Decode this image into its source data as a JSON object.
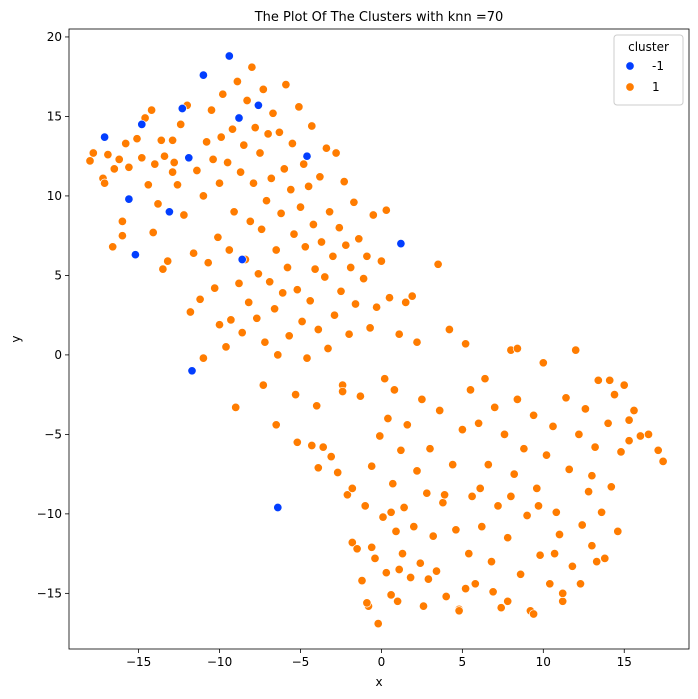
{
  "chart_data": {
    "type": "scatter",
    "title": "The Plot Of The Clusters with knn =70",
    "xlabel": "x",
    "ylabel": "y",
    "xlim": [
      -19.3,
      19.0
    ],
    "ylim": [
      -18.5,
      20.5
    ],
    "xticks": [
      -15,
      -10,
      -5,
      0,
      5,
      10,
      15
    ],
    "yticks": [
      -15,
      -10,
      -5,
      0,
      5,
      10,
      15,
      20
    ],
    "grid": false,
    "legend": {
      "title": "cluster",
      "placement": "top-right",
      "entries": [
        {
          "label": "-1",
          "color": "#023eff"
        },
        {
          "label": "1",
          "color": "#ff7c00"
        }
      ]
    },
    "series": [
      {
        "name": "-1",
        "color": "#023eff",
        "points": [
          [
            -17.1,
            13.7
          ],
          [
            -15.6,
            9.8
          ],
          [
            -15.2,
            6.3
          ],
          [
            -14.8,
            14.5
          ],
          [
            -13.1,
            9.0
          ],
          [
            -12.3,
            15.5
          ],
          [
            -11.9,
            12.4
          ],
          [
            -11.7,
            -1.0
          ],
          [
            -11.0,
            17.6
          ],
          [
            -9.4,
            18.8
          ],
          [
            -8.8,
            14.9
          ],
          [
            -8.6,
            6.0
          ],
          [
            -7.6,
            15.7
          ],
          [
            -4.6,
            12.5
          ],
          [
            -6.4,
            -9.6
          ],
          [
            1.2,
            7.0
          ]
        ]
      },
      {
        "name": "1",
        "color": "#ff7c00",
        "points": [
          [
            -18.0,
            12.2
          ],
          [
            -17.8,
            12.7
          ],
          [
            -17.2,
            11.1
          ],
          [
            -17.1,
            10.8
          ],
          [
            -16.9,
            12.6
          ],
          [
            -16.6,
            6.8
          ],
          [
            -16.5,
            11.7
          ],
          [
            -16.2,
            12.3
          ],
          [
            -16.0,
            7.5
          ],
          [
            -16.0,
            8.4
          ],
          [
            -15.8,
            13.3
          ],
          [
            -15.6,
            11.8
          ],
          [
            -15.1,
            13.6
          ],
          [
            -14.8,
            12.4
          ],
          [
            -14.6,
            14.9
          ],
          [
            -14.4,
            10.7
          ],
          [
            -14.2,
            15.4
          ],
          [
            -14.0,
            12.0
          ],
          [
            -13.8,
            9.5
          ],
          [
            -13.6,
            13.5
          ],
          [
            -13.4,
            12.5
          ],
          [
            -13.2,
            5.9
          ],
          [
            -12.9,
            13.5
          ],
          [
            -12.8,
            12.1
          ],
          [
            -12.6,
            10.7
          ],
          [
            -12.4,
            14.5
          ],
          [
            -12.2,
            8.8
          ],
          [
            -12.0,
            15.7
          ],
          [
            -11.8,
            2.7
          ],
          [
            -11.6,
            6.4
          ],
          [
            -11.4,
            11.6
          ],
          [
            -11.2,
            3.5
          ],
          [
            -11.0,
            10.0
          ],
          [
            -10.8,
            13.4
          ],
          [
            -10.7,
            5.8
          ],
          [
            -10.5,
            15.4
          ],
          [
            -10.3,
            4.2
          ],
          [
            -10.1,
            7.4
          ],
          [
            -10.0,
            10.8
          ],
          [
            -9.8,
            16.4
          ],
          [
            -9.6,
            0.5
          ],
          [
            -9.5,
            12.1
          ],
          [
            -9.4,
            6.6
          ],
          [
            -9.3,
            2.2
          ],
          [
            -9.2,
            14.2
          ],
          [
            -9.1,
            9.0
          ],
          [
            -8.9,
            17.2
          ],
          [
            -8.8,
            4.5
          ],
          [
            -8.7,
            11.5
          ],
          [
            -8.6,
            1.4
          ],
          [
            -8.5,
            13.2
          ],
          [
            -8.4,
            6.0
          ],
          [
            -8.3,
            16.0
          ],
          [
            -8.2,
            3.3
          ],
          [
            -8.1,
            8.4
          ],
          [
            -8.0,
            18.1
          ],
          [
            -7.9,
            10.8
          ],
          [
            -7.8,
            14.3
          ],
          [
            -7.7,
            2.3
          ],
          [
            -7.6,
            5.1
          ],
          [
            -7.5,
            12.7
          ],
          [
            -7.4,
            7.9
          ],
          [
            -7.3,
            16.7
          ],
          [
            -7.2,
            0.8
          ],
          [
            -7.1,
            9.7
          ],
          [
            -7.0,
            13.9
          ],
          [
            -6.9,
            4.6
          ],
          [
            -6.8,
            11.1
          ],
          [
            -6.7,
            15.2
          ],
          [
            -6.6,
            2.9
          ],
          [
            -6.5,
            6.6
          ],
          [
            -6.4,
            0.0
          ],
          [
            -6.3,
            14.0
          ],
          [
            -6.2,
            8.9
          ],
          [
            -6.1,
            3.9
          ],
          [
            -6.0,
            11.7
          ],
          [
            -5.9,
            17.0
          ],
          [
            -5.8,
            5.5
          ],
          [
            -5.7,
            1.2
          ],
          [
            -5.6,
            10.4
          ],
          [
            -5.5,
            13.3
          ],
          [
            -5.4,
            7.6
          ],
          [
            -5.3,
            -2.5
          ],
          [
            -5.2,
            4.1
          ],
          [
            -5.1,
            15.6
          ],
          [
            -5.0,
            9.3
          ],
          [
            -4.9,
            2.1
          ],
          [
            -4.8,
            12.0
          ],
          [
            -4.7,
            6.8
          ],
          [
            -4.6,
            -0.2
          ],
          [
            -4.5,
            10.6
          ],
          [
            -4.4,
            3.4
          ],
          [
            -4.3,
            14.4
          ],
          [
            -4.2,
            8.2
          ],
          [
            -4.1,
            5.4
          ],
          [
            -4.0,
            -3.2
          ],
          [
            -3.9,
            1.6
          ],
          [
            -3.8,
            11.2
          ],
          [
            -3.7,
            7.1
          ],
          [
            -3.6,
            -5.8
          ],
          [
            -3.5,
            4.9
          ],
          [
            -3.4,
            13.0
          ],
          [
            -3.3,
            0.4
          ],
          [
            -3.2,
            9.0
          ],
          [
            -3.1,
            -6.4
          ],
          [
            -3.0,
            6.2
          ],
          [
            -2.9,
            2.5
          ],
          [
            -2.8,
            12.7
          ],
          [
            -2.7,
            -7.4
          ],
          [
            -2.6,
            8.0
          ],
          [
            -2.5,
            4.0
          ],
          [
            -2.4,
            -1.9
          ],
          [
            -2.3,
            10.9
          ],
          [
            -2.2,
            6.9
          ],
          [
            -2.1,
            -8.8
          ],
          [
            -2.0,
            1.3
          ],
          [
            -1.9,
            5.5
          ],
          [
            -1.8,
            -11.8
          ],
          [
            -1.7,
            9.6
          ],
          [
            -1.6,
            3.2
          ],
          [
            -1.5,
            -12.2
          ],
          [
            -1.4,
            7.3
          ],
          [
            -1.3,
            -2.6
          ],
          [
            -1.2,
            -14.2
          ],
          [
            -1.1,
            4.8
          ],
          [
            -1.0,
            -9.5
          ],
          [
            -0.9,
            6.2
          ],
          [
            -0.8,
            -15.8
          ],
          [
            -0.7,
            1.7
          ],
          [
            -0.6,
            -7.0
          ],
          [
            -0.5,
            8.8
          ],
          [
            -0.4,
            -12.8
          ],
          [
            -0.3,
            3.0
          ],
          [
            -0.2,
            -16.9
          ],
          [
            -0.1,
            -5.1
          ],
          [
            0.0,
            5.9
          ],
          [
            0.1,
            -10.2
          ],
          [
            0.2,
            -1.5
          ],
          [
            0.3,
            -13.7
          ],
          [
            0.4,
            -4.0
          ],
          [
            0.5,
            3.6
          ],
          [
            0.6,
            -15.1
          ],
          [
            0.7,
            -8.1
          ],
          [
            0.8,
            -2.2
          ],
          [
            0.9,
            -11.1
          ],
          [
            1.0,
            -15.5
          ],
          [
            1.1,
            1.3
          ],
          [
            1.2,
            -6.0
          ],
          [
            1.3,
            -12.5
          ],
          [
            1.4,
            -9.6
          ],
          [
            1.6,
            -4.4
          ],
          [
            1.8,
            -14.0
          ],
          [
            1.9,
            3.7
          ],
          [
            2.0,
            -10.8
          ],
          [
            2.2,
            -7.3
          ],
          [
            2.4,
            -13.1
          ],
          [
            2.5,
            -2.8
          ],
          [
            2.6,
            -15.8
          ],
          [
            2.8,
            -8.7
          ],
          [
            3.0,
            -5.9
          ],
          [
            3.2,
            -11.4
          ],
          [
            3.4,
            -13.6
          ],
          [
            3.5,
            5.7
          ],
          [
            3.6,
            -3.5
          ],
          [
            3.8,
            -9.3
          ],
          [
            4.0,
            -15.2
          ],
          [
            4.2,
            1.6
          ],
          [
            4.4,
            -6.9
          ],
          [
            4.6,
            -11.0
          ],
          [
            4.8,
            -16.0
          ],
          [
            5.0,
            -4.7
          ],
          [
            5.2,
            0.7
          ],
          [
            5.4,
            -12.5
          ],
          [
            5.5,
            -2.2
          ],
          [
            5.6,
            -8.9
          ],
          [
            5.8,
            -14.4
          ],
          [
            6.0,
            -4.3
          ],
          [
            6.2,
            -10.8
          ],
          [
            6.4,
            -1.5
          ],
          [
            6.6,
            -6.9
          ],
          [
            6.8,
            -13.0
          ],
          [
            7.0,
            -3.3
          ],
          [
            7.2,
            -9.5
          ],
          [
            7.4,
            -15.9
          ],
          [
            7.6,
            -5.0
          ],
          [
            7.8,
            -11.5
          ],
          [
            8.0,
            0.3
          ],
          [
            8.2,
            -7.5
          ],
          [
            8.4,
            -2.8
          ],
          [
            8.6,
            -13.8
          ],
          [
            8.8,
            -5.9
          ],
          [
            9.0,
            -10.1
          ],
          [
            9.2,
            -16.1
          ],
          [
            9.4,
            -3.8
          ],
          [
            9.6,
            -8.4
          ],
          [
            9.8,
            -12.6
          ],
          [
            10.0,
            -0.5
          ],
          [
            10.2,
            -6.3
          ],
          [
            10.4,
            -14.4
          ],
          [
            10.6,
            -4.5
          ],
          [
            10.8,
            -9.9
          ],
          [
            11.0,
            -11.3
          ],
          [
            11.2,
            -15.5
          ],
          [
            11.4,
            -2.7
          ],
          [
            11.6,
            -7.2
          ],
          [
            11.8,
            -13.3
          ],
          [
            12.0,
            0.3
          ],
          [
            12.2,
            -5.0
          ],
          [
            12.4,
            -10.7
          ],
          [
            12.6,
            -3.4
          ],
          [
            12.8,
            -8.6
          ],
          [
            13.0,
            -12.0
          ],
          [
            13.2,
            -5.8
          ],
          [
            13.4,
            -1.6
          ],
          [
            13.6,
            -9.9
          ],
          [
            13.8,
            -12.8
          ],
          [
            14.0,
            -4.3
          ],
          [
            14.2,
            -8.3
          ],
          [
            14.4,
            -2.5
          ],
          [
            14.6,
            -11.1
          ],
          [
            14.8,
            -6.1
          ],
          [
            15.0,
            -1.9
          ],
          [
            15.3,
            -5.4
          ],
          [
            15.6,
            -3.5
          ],
          [
            16.0,
            -5.1
          ],
          [
            16.5,
            -5.0
          ],
          [
            17.1,
            -6.0
          ],
          [
            17.4,
            -6.7
          ],
          [
            -9.9,
            13.7
          ],
          [
            -10.4,
            12.3
          ],
          [
            -12.9,
            11.5
          ],
          [
            -14.1,
            7.7
          ],
          [
            -13.5,
            5.4
          ],
          [
            -11.0,
            -0.2
          ],
          [
            -10.0,
            1.9
          ],
          [
            -9.0,
            -3.3
          ],
          [
            -7.3,
            -1.9
          ],
          [
            -6.5,
            -4.4
          ],
          [
            -5.2,
            -5.5
          ],
          [
            -4.3,
            -5.7
          ],
          [
            -3.9,
            -7.1
          ],
          [
            -2.4,
            -2.3
          ],
          [
            -1.8,
            -8.4
          ],
          [
            0.3,
            9.1
          ],
          [
            1.5,
            3.3
          ],
          [
            2.2,
            0.8
          ],
          [
            4.8,
            -16.1
          ],
          [
            5.2,
            -14.7
          ],
          [
            6.9,
            -14.9
          ],
          [
            7.8,
            -15.5
          ],
          [
            8.4,
            0.4
          ],
          [
            9.4,
            -16.3
          ],
          [
            10.7,
            -12.5
          ],
          [
            12.3,
            -14.4
          ],
          [
            13.3,
            -13.0
          ],
          [
            11.2,
            -15.0
          ],
          [
            15.3,
            -4.1
          ],
          [
            14.1,
            -1.6
          ],
          [
            13.0,
            -7.6
          ],
          [
            9.7,
            -9.5
          ],
          [
            8.0,
            -8.9
          ],
          [
            6.1,
            -8.4
          ],
          [
            3.9,
            -8.8
          ],
          [
            0.6,
            -9.9
          ],
          [
            -0.6,
            -12.1
          ],
          [
            1.1,
            -13.5
          ],
          [
            -0.9,
            -15.6
          ],
          [
            2.9,
            -14.1
          ]
        ]
      }
    ]
  }
}
